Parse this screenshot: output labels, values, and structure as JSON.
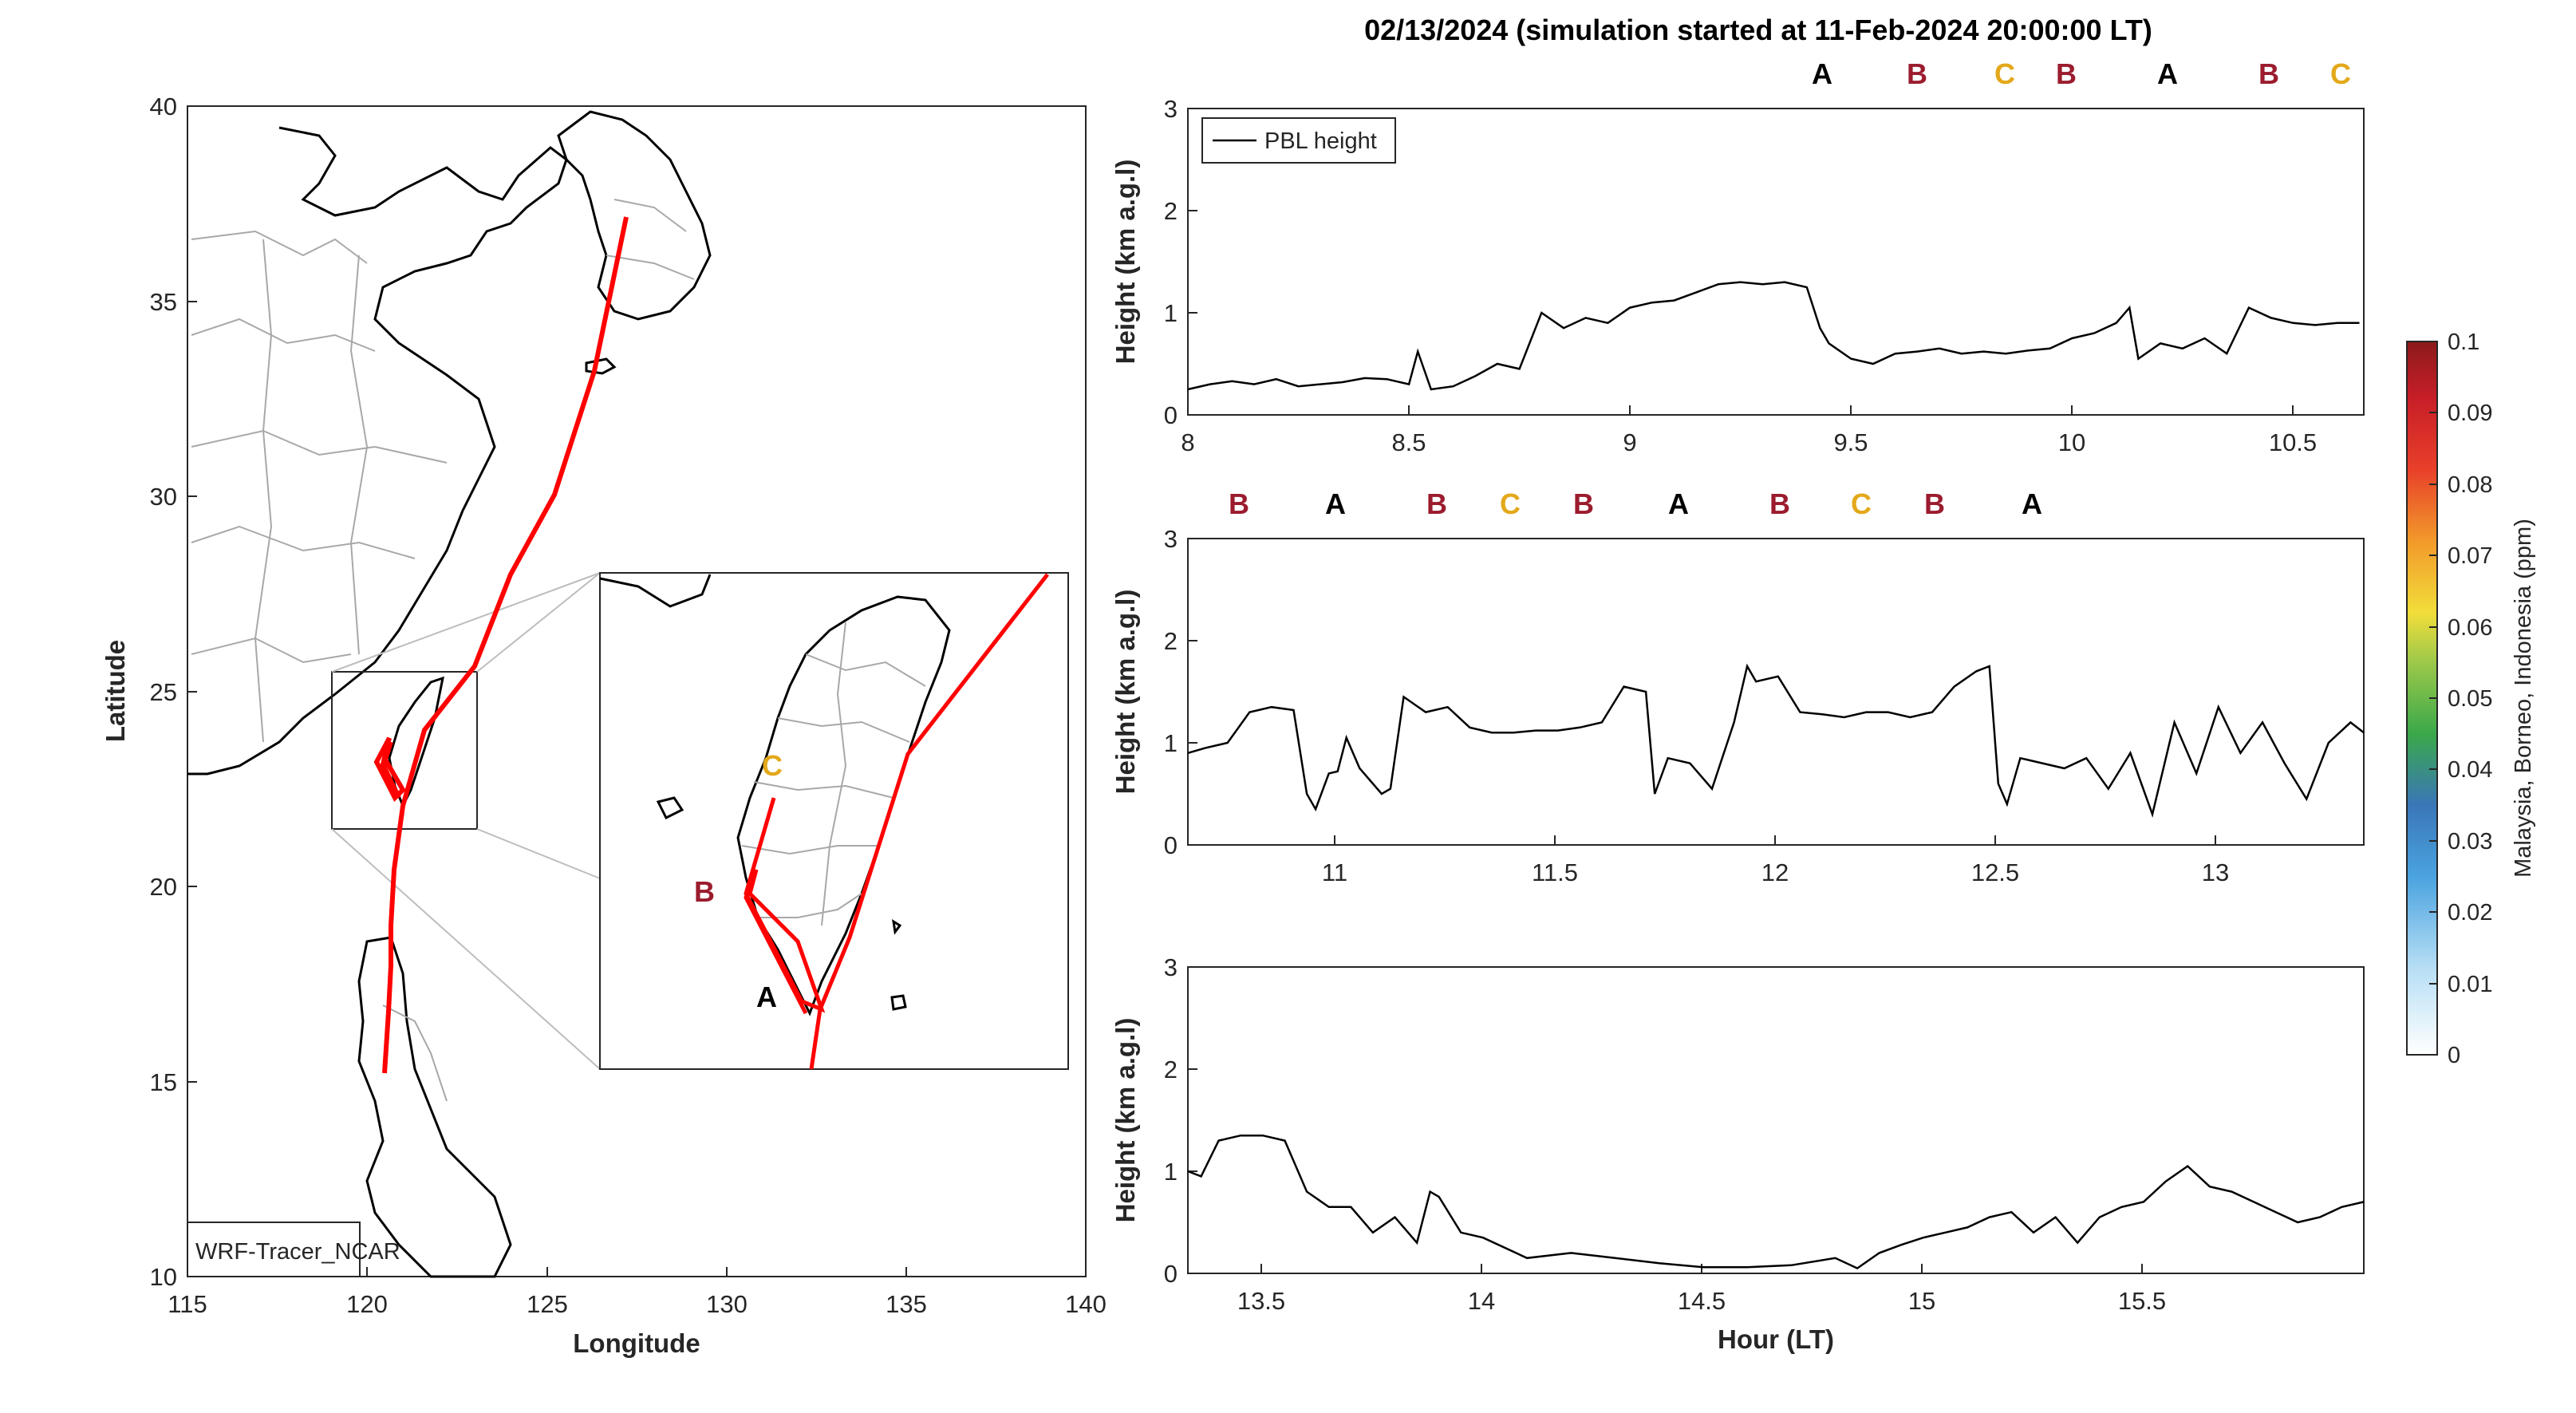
{
  "title": "02/13/2024 (simulation started at 11-Feb-2024 20:00:00 LT)",
  "colors": {
    "A": "#000000",
    "B": "#9b1c2e",
    "C": "#e3a81a",
    "track": "#ff0000",
    "pbl": "#000000"
  },
  "map": {
    "xlabel": "Longitude",
    "ylabel": "Latitude",
    "xticks": [
      "115",
      "120",
      "125",
      "130",
      "135",
      "140"
    ],
    "yticks": [
      "10",
      "15",
      "20",
      "25",
      "30",
      "35",
      "40"
    ],
    "model_label": "WRF-Tracer_NCAR",
    "inset_labels": {
      "A": "A",
      "B": "B",
      "C": "C"
    }
  },
  "colorbar": {
    "label": "Malaysia, Borneo, Indonesia (ppm)",
    "ticks": [
      "0",
      "0.01",
      "0.02",
      "0.03",
      "0.04",
      "0.05",
      "0.06",
      "0.07",
      "0.08",
      "0.09",
      "0.1"
    ],
    "range": [
      0,
      0.1
    ]
  },
  "panels": {
    "ylabel": "Height (km a.g.l)",
    "xlabel": "Hour (LT)",
    "yticks": [
      "0",
      "1",
      "2",
      "3"
    ],
    "legend": "PBL height",
    "p1": {
      "xticks": [
        "8",
        "8.5",
        "9",
        "9.5",
        "10",
        "10.5"
      ],
      "markers": [
        "A",
        "B",
        "C",
        "B",
        "A",
        "B",
        "C"
      ]
    },
    "p2": {
      "xticks": [
        "11",
        "11.5",
        "12",
        "12.5",
        "13"
      ],
      "markers": [
        "B",
        "A",
        "B",
        "C",
        "B",
        "A",
        "B",
        "C",
        "B",
        "A"
      ]
    },
    "p3": {
      "xticks": [
        "13.5",
        "14",
        "14.5",
        "15",
        "15.5"
      ],
      "markers": []
    }
  },
  "chart_data": [
    {
      "type": "line",
      "title": "PBL height",
      "xlabel": "",
      "ylabel": "Height (km a.g.l)",
      "xlim": [
        8,
        10.66
      ],
      "ylim": [
        0,
        3
      ],
      "x": [
        8.0,
        8.05,
        8.1,
        8.15,
        8.2,
        8.25,
        8.3,
        8.35,
        8.4,
        8.45,
        8.5,
        8.52,
        8.55,
        8.6,
        8.65,
        8.7,
        8.75,
        8.8,
        8.85,
        8.9,
        8.95,
        9.0,
        9.05,
        9.1,
        9.15,
        9.2,
        9.25,
        9.3,
        9.35,
        9.4,
        9.43,
        9.45,
        9.5,
        9.55,
        9.6,
        9.65,
        9.7,
        9.75,
        9.8,
        9.85,
        9.9,
        9.95,
        10.0,
        10.05,
        10.1,
        10.13,
        10.15,
        10.2,
        10.25,
        10.3,
        10.35,
        10.4,
        10.45,
        10.5,
        10.55,
        10.6,
        10.65
      ],
      "y": [
        0.25,
        0.3,
        0.33,
        0.3,
        0.35,
        0.28,
        0.3,
        0.32,
        0.36,
        0.35,
        0.3,
        0.62,
        0.25,
        0.28,
        0.38,
        0.5,
        0.45,
        1.0,
        0.85,
        0.95,
        0.9,
        1.05,
        1.1,
        1.12,
        1.2,
        1.28,
        1.3,
        1.28,
        1.3,
        1.25,
        0.85,
        0.7,
        0.55,
        0.5,
        0.6,
        0.62,
        0.65,
        0.6,
        0.62,
        0.6,
        0.63,
        0.65,
        0.75,
        0.8,
        0.9,
        1.05,
        0.55,
        0.7,
        0.65,
        0.75,
        0.6,
        1.05,
        0.95,
        0.9,
        0.88,
        0.9,
        0.9
      ]
    },
    {
      "type": "line",
      "title": "PBL height",
      "xlabel": "",
      "ylabel": "Height (km a.g.l)",
      "xlim": [
        10.66,
        13.33
      ],
      "ylim": [
        0,
        3
      ],
      "x": [
        10.66,
        10.7,
        10.75,
        10.8,
        10.85,
        10.9,
        10.93,
        10.95,
        10.98,
        11.0,
        11.02,
        11.05,
        11.1,
        11.12,
        11.15,
        11.2,
        11.25,
        11.3,
        11.35,
        11.4,
        11.45,
        11.5,
        11.55,
        11.6,
        11.65,
        11.7,
        11.72,
        11.75,
        11.8,
        11.85,
        11.9,
        11.93,
        11.95,
        12.0,
        12.05,
        12.1,
        12.15,
        12.2,
        12.25,
        12.3,
        12.35,
        12.4,
        12.45,
        12.48,
        12.5,
        12.52,
        12.55,
        12.6,
        12.65,
        12.7,
        12.75,
        12.8,
        12.85,
        12.9,
        12.95,
        13.0,
        13.05,
        13.1,
        13.15,
        13.2,
        13.25,
        13.3,
        13.33
      ],
      "y": [
        0.9,
        0.95,
        1.0,
        1.3,
        1.35,
        1.32,
        0.5,
        0.35,
        0.7,
        0.72,
        1.05,
        0.75,
        0.5,
        0.55,
        1.45,
        1.3,
        1.35,
        1.15,
        1.1,
        1.1,
        1.12,
        1.12,
        1.15,
        1.2,
        1.55,
        1.5,
        0.5,
        0.85,
        0.8,
        0.55,
        1.2,
        1.75,
        1.6,
        1.65,
        1.3,
        1.28,
        1.25,
        1.3,
        1.3,
        1.25,
        1.3,
        1.55,
        1.7,
        1.75,
        0.6,
        0.4,
        0.85,
        0.8,
        0.75,
        0.85,
        0.55,
        0.9,
        0.3,
        1.2,
        0.7,
        1.35,
        0.9,
        1.2,
        0.8,
        0.45,
        1.0,
        1.2,
        1.1
      ]
    },
    {
      "type": "line",
      "title": "PBL height",
      "xlabel": "Hour (LT)",
      "ylabel": "Height (km a.g.l)",
      "xlim": [
        13.33,
        16.0
      ],
      "ylim": [
        0,
        3
      ],
      "x": [
        13.33,
        13.36,
        13.4,
        13.45,
        13.5,
        13.55,
        13.6,
        13.65,
        13.7,
        13.75,
        13.8,
        13.85,
        13.88,
        13.9,
        13.95,
        14.0,
        14.1,
        14.2,
        14.3,
        14.4,
        14.5,
        14.6,
        14.7,
        14.8,
        14.85,
        14.9,
        14.95,
        15.0,
        15.05,
        15.1,
        15.15,
        15.2,
        15.25,
        15.3,
        15.35,
        15.4,
        15.45,
        15.5,
        15.55,
        15.6,
        15.65,
        15.7,
        15.75,
        15.8,
        15.85,
        15.9,
        15.95,
        16.0
      ],
      "y": [
        1.0,
        0.95,
        1.3,
        1.35,
        1.35,
        1.3,
        0.8,
        0.65,
        0.65,
        0.4,
        0.55,
        0.3,
        0.8,
        0.75,
        0.4,
        0.35,
        0.15,
        0.2,
        0.15,
        0.1,
        0.06,
        0.06,
        0.08,
        0.15,
        0.05,
        0.2,
        0.28,
        0.35,
        0.4,
        0.45,
        0.55,
        0.6,
        0.4,
        0.55,
        0.3,
        0.55,
        0.65,
        0.7,
        0.9,
        1.05,
        0.85,
        0.8,
        0.7,
        0.6,
        0.5,
        0.55,
        0.65,
        0.7
      ]
    }
  ]
}
